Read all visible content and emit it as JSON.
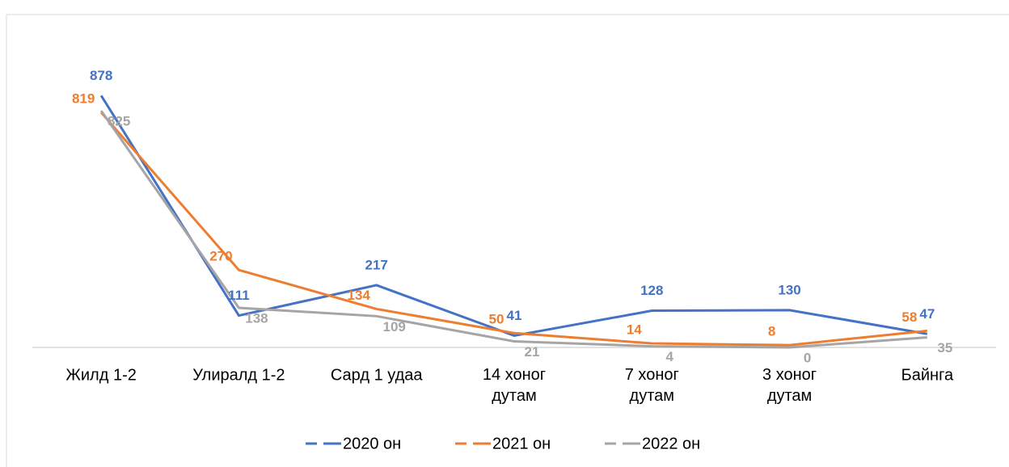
{
  "chart_data": {
    "type": "line",
    "categories": [
      "Жилд 1-2",
      "Улиралд 1-2",
      "Сард 1 удаа",
      "14 хоног\nдутам",
      "7 хоног\nдутам",
      "3 хоног\nдутам",
      "Байнга"
    ],
    "series": [
      {
        "name": "2020 он",
        "color": "#4472c4",
        "values": [
          878,
          111,
          217,
          41,
          128,
          130,
          47
        ]
      },
      {
        "name": "2021 он",
        "color": "#ed7d31",
        "values": [
          819,
          270,
          134,
          50,
          14,
          8,
          58
        ]
      },
      {
        "name": "2022 он",
        "color": "#a5a5a5",
        "values": [
          825,
          138,
          109,
          21,
          4,
          0,
          35
        ]
      }
    ],
    "ylim": [
      0,
      1000
    ],
    "legend": "bottom"
  }
}
